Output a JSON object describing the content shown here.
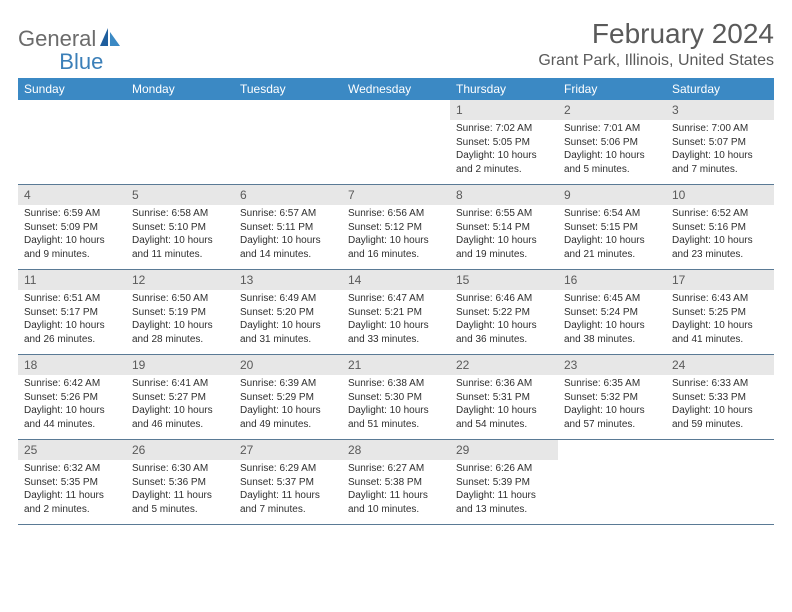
{
  "logo": {
    "text1": "General",
    "text2": "Blue"
  },
  "title": "February 2024",
  "location": "Grant Park, Illinois, United States",
  "colors": {
    "header_bg": "#3b89c4",
    "header_text": "#ffffff",
    "daynum_bg": "#e7e7e7",
    "daynum_text": "#5a5a5a",
    "text": "#2f2f2f",
    "logo_gray": "#6b6b6b",
    "logo_blue": "#3b7fb8",
    "rule": "#5a7a95"
  },
  "day_names": [
    "Sunday",
    "Monday",
    "Tuesday",
    "Wednesday",
    "Thursday",
    "Friday",
    "Saturday"
  ],
  "weeks": [
    [
      {
        "num": "",
        "sunrise": "",
        "sunset": "",
        "daylight": ""
      },
      {
        "num": "",
        "sunrise": "",
        "sunset": "",
        "daylight": ""
      },
      {
        "num": "",
        "sunrise": "",
        "sunset": "",
        "daylight": ""
      },
      {
        "num": "",
        "sunrise": "",
        "sunset": "",
        "daylight": ""
      },
      {
        "num": "1",
        "sunrise": "Sunrise: 7:02 AM",
        "sunset": "Sunset: 5:05 PM",
        "daylight": "Daylight: 10 hours and 2 minutes."
      },
      {
        "num": "2",
        "sunrise": "Sunrise: 7:01 AM",
        "sunset": "Sunset: 5:06 PM",
        "daylight": "Daylight: 10 hours and 5 minutes."
      },
      {
        "num": "3",
        "sunrise": "Sunrise: 7:00 AM",
        "sunset": "Sunset: 5:07 PM",
        "daylight": "Daylight: 10 hours and 7 minutes."
      }
    ],
    [
      {
        "num": "4",
        "sunrise": "Sunrise: 6:59 AM",
        "sunset": "Sunset: 5:09 PM",
        "daylight": "Daylight: 10 hours and 9 minutes."
      },
      {
        "num": "5",
        "sunrise": "Sunrise: 6:58 AM",
        "sunset": "Sunset: 5:10 PM",
        "daylight": "Daylight: 10 hours and 11 minutes."
      },
      {
        "num": "6",
        "sunrise": "Sunrise: 6:57 AM",
        "sunset": "Sunset: 5:11 PM",
        "daylight": "Daylight: 10 hours and 14 minutes."
      },
      {
        "num": "7",
        "sunrise": "Sunrise: 6:56 AM",
        "sunset": "Sunset: 5:12 PM",
        "daylight": "Daylight: 10 hours and 16 minutes."
      },
      {
        "num": "8",
        "sunrise": "Sunrise: 6:55 AM",
        "sunset": "Sunset: 5:14 PM",
        "daylight": "Daylight: 10 hours and 19 minutes."
      },
      {
        "num": "9",
        "sunrise": "Sunrise: 6:54 AM",
        "sunset": "Sunset: 5:15 PM",
        "daylight": "Daylight: 10 hours and 21 minutes."
      },
      {
        "num": "10",
        "sunrise": "Sunrise: 6:52 AM",
        "sunset": "Sunset: 5:16 PM",
        "daylight": "Daylight: 10 hours and 23 minutes."
      }
    ],
    [
      {
        "num": "11",
        "sunrise": "Sunrise: 6:51 AM",
        "sunset": "Sunset: 5:17 PM",
        "daylight": "Daylight: 10 hours and 26 minutes."
      },
      {
        "num": "12",
        "sunrise": "Sunrise: 6:50 AM",
        "sunset": "Sunset: 5:19 PM",
        "daylight": "Daylight: 10 hours and 28 minutes."
      },
      {
        "num": "13",
        "sunrise": "Sunrise: 6:49 AM",
        "sunset": "Sunset: 5:20 PM",
        "daylight": "Daylight: 10 hours and 31 minutes."
      },
      {
        "num": "14",
        "sunrise": "Sunrise: 6:47 AM",
        "sunset": "Sunset: 5:21 PM",
        "daylight": "Daylight: 10 hours and 33 minutes."
      },
      {
        "num": "15",
        "sunrise": "Sunrise: 6:46 AM",
        "sunset": "Sunset: 5:22 PM",
        "daylight": "Daylight: 10 hours and 36 minutes."
      },
      {
        "num": "16",
        "sunrise": "Sunrise: 6:45 AM",
        "sunset": "Sunset: 5:24 PM",
        "daylight": "Daylight: 10 hours and 38 minutes."
      },
      {
        "num": "17",
        "sunrise": "Sunrise: 6:43 AM",
        "sunset": "Sunset: 5:25 PM",
        "daylight": "Daylight: 10 hours and 41 minutes."
      }
    ],
    [
      {
        "num": "18",
        "sunrise": "Sunrise: 6:42 AM",
        "sunset": "Sunset: 5:26 PM",
        "daylight": "Daylight: 10 hours and 44 minutes."
      },
      {
        "num": "19",
        "sunrise": "Sunrise: 6:41 AM",
        "sunset": "Sunset: 5:27 PM",
        "daylight": "Daylight: 10 hours and 46 minutes."
      },
      {
        "num": "20",
        "sunrise": "Sunrise: 6:39 AM",
        "sunset": "Sunset: 5:29 PM",
        "daylight": "Daylight: 10 hours and 49 minutes."
      },
      {
        "num": "21",
        "sunrise": "Sunrise: 6:38 AM",
        "sunset": "Sunset: 5:30 PM",
        "daylight": "Daylight: 10 hours and 51 minutes."
      },
      {
        "num": "22",
        "sunrise": "Sunrise: 6:36 AM",
        "sunset": "Sunset: 5:31 PM",
        "daylight": "Daylight: 10 hours and 54 minutes."
      },
      {
        "num": "23",
        "sunrise": "Sunrise: 6:35 AM",
        "sunset": "Sunset: 5:32 PM",
        "daylight": "Daylight: 10 hours and 57 minutes."
      },
      {
        "num": "24",
        "sunrise": "Sunrise: 6:33 AM",
        "sunset": "Sunset: 5:33 PM",
        "daylight": "Daylight: 10 hours and 59 minutes."
      }
    ],
    [
      {
        "num": "25",
        "sunrise": "Sunrise: 6:32 AM",
        "sunset": "Sunset: 5:35 PM",
        "daylight": "Daylight: 11 hours and 2 minutes."
      },
      {
        "num": "26",
        "sunrise": "Sunrise: 6:30 AM",
        "sunset": "Sunset: 5:36 PM",
        "daylight": "Daylight: 11 hours and 5 minutes."
      },
      {
        "num": "27",
        "sunrise": "Sunrise: 6:29 AM",
        "sunset": "Sunset: 5:37 PM",
        "daylight": "Daylight: 11 hours and 7 minutes."
      },
      {
        "num": "28",
        "sunrise": "Sunrise: 6:27 AM",
        "sunset": "Sunset: 5:38 PM",
        "daylight": "Daylight: 11 hours and 10 minutes."
      },
      {
        "num": "29",
        "sunrise": "Sunrise: 6:26 AM",
        "sunset": "Sunset: 5:39 PM",
        "daylight": "Daylight: 11 hours and 13 minutes."
      },
      {
        "num": "",
        "sunrise": "",
        "sunset": "",
        "daylight": ""
      },
      {
        "num": "",
        "sunrise": "",
        "sunset": "",
        "daylight": ""
      }
    ]
  ]
}
